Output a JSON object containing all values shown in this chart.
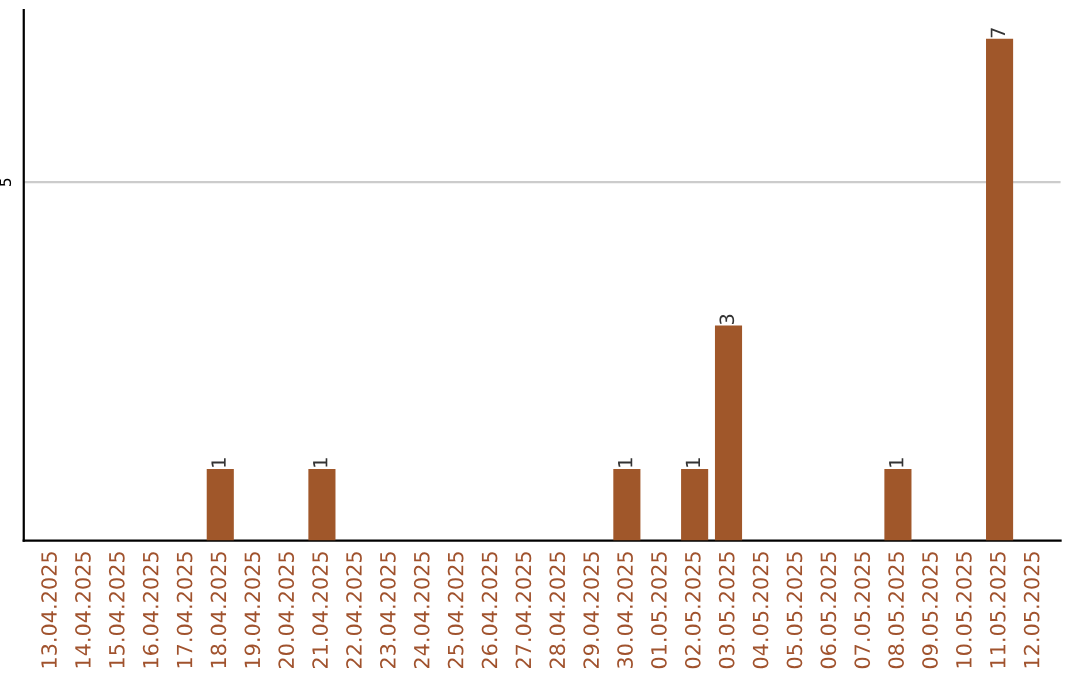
{
  "chart_data": {
    "type": "bar",
    "categories": [
      "13.04.2025",
      "14.04.2025",
      "15.04.2025",
      "16.04.2025",
      "17.04.2025",
      "18.04.2025",
      "19.04.2025",
      "20.04.2025",
      "21.04.2025",
      "22.04.2025",
      "23.04.2025",
      "24.04.2025",
      "25.04.2025",
      "26.04.2025",
      "27.04.2025",
      "28.04.2025",
      "29.04.2025",
      "30.04.2025",
      "01.05.2025",
      "02.05.2025",
      "03.05.2025",
      "04.05.2025",
      "05.05.2025",
      "06.05.2025",
      "07.05.2025",
      "08.05.2025",
      "09.05.2025",
      "10.05.2025",
      "11.05.2025",
      "12.05.2025"
    ],
    "values": [
      0,
      0,
      0,
      0,
      0,
      1,
      0,
      0,
      1,
      0,
      0,
      0,
      0,
      0,
      0,
      0,
      0,
      1,
      0,
      1,
      3,
      0,
      0,
      0,
      0,
      1,
      0,
      0,
      7,
      0
    ],
    "value_labels": [
      null,
      null,
      null,
      null,
      null,
      "1",
      null,
      null,
      "1",
      null,
      null,
      null,
      null,
      null,
      null,
      null,
      null,
      "1",
      null,
      "1",
      "3",
      null,
      null,
      null,
      null,
      "1",
      null,
      null,
      "7",
      null
    ],
    "color": "#a0572a",
    "ylim": [
      0,
      7.4
    ],
    "yticks": [
      5
    ],
    "grid": "y",
    "legend": false
  }
}
